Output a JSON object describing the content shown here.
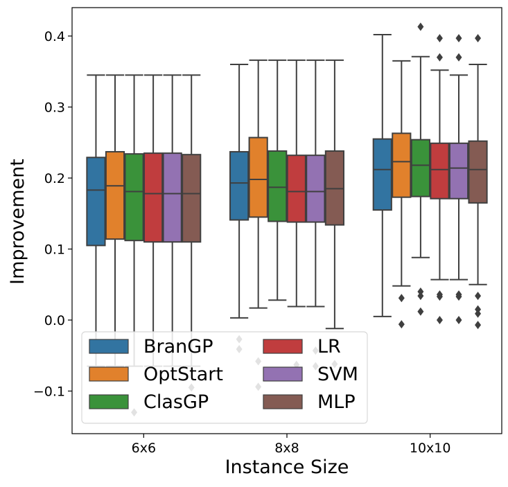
{
  "chart_data": {
    "type": "box",
    "xlabel": "Instance Size",
    "ylabel": "Improvement",
    "categories": [
      "6x6",
      "8x8",
      "10x10"
    ],
    "ylim": [
      -0.16,
      0.44
    ],
    "yticks": [
      -0.1,
      0.0,
      0.1,
      0.2,
      0.3,
      0.4
    ],
    "ytick_labels": [
      "−0.1",
      "0.0",
      "0.1",
      "0.2",
      "0.3",
      "0.4"
    ],
    "grid": false,
    "legend_placement": "lower-left",
    "legend_columns": 2,
    "series": [
      {
        "name": "BranGP",
        "color": "#3274a1",
        "boxes": [
          {
            "whisker_low": -0.065,
            "q1": 0.105,
            "median": 0.183,
            "q3": 0.229,
            "whisker_high": 0.345,
            "outliers": []
          },
          {
            "whisker_low": 0.003,
            "q1": 0.141,
            "median": 0.193,
            "q3": 0.237,
            "whisker_high": 0.36,
            "outliers": [
              -0.027,
              -0.041
            ]
          },
          {
            "whisker_low": 0.005,
            "q1": 0.155,
            "median": 0.212,
            "q3": 0.255,
            "whisker_high": 0.402,
            "outliers": []
          }
        ]
      },
      {
        "name": "OptStart",
        "color": "#e1812c",
        "boxes": [
          {
            "whisker_low": -0.065,
            "q1": 0.114,
            "median": 0.189,
            "q3": 0.237,
            "whisker_high": 0.345,
            "outliers": []
          },
          {
            "whisker_low": 0.017,
            "q1": 0.145,
            "median": 0.198,
            "q3": 0.257,
            "whisker_high": 0.366,
            "outliers": [
              -0.058,
              -0.094
            ]
          },
          {
            "whisker_low": 0.048,
            "q1": 0.173,
            "median": 0.223,
            "q3": 0.263,
            "whisker_high": 0.365,
            "outliers": [
              0.031,
              -0.006
            ]
          }
        ]
      },
      {
        "name": "ClasGP",
        "color": "#3a923a",
        "boxes": [
          {
            "whisker_low": -0.065,
            "q1": 0.112,
            "median": 0.181,
            "q3": 0.234,
            "whisker_high": 0.345,
            "outliers": [
              -0.13
            ]
          },
          {
            "whisker_low": 0.028,
            "q1": 0.139,
            "median": 0.187,
            "q3": 0.238,
            "whisker_high": 0.366,
            "outliers": []
          },
          {
            "whisker_low": 0.088,
            "q1": 0.174,
            "median": 0.218,
            "q3": 0.254,
            "whisker_high": 0.371,
            "outliers": [
              0.413,
              0.04,
              0.034,
              0.012
            ]
          }
        ]
      },
      {
        "name": "LR",
        "color": "#c03d3e",
        "boxes": [
          {
            "whisker_low": -0.065,
            "q1": 0.11,
            "median": 0.178,
            "q3": 0.235,
            "whisker_high": 0.345,
            "outliers": []
          },
          {
            "whisker_low": 0.019,
            "q1": 0.138,
            "median": 0.181,
            "q3": 0.232,
            "whisker_high": 0.366,
            "outliers": [
              -0.063
            ]
          },
          {
            "whisker_low": 0.057,
            "q1": 0.171,
            "median": 0.212,
            "q3": 0.249,
            "whisker_high": 0.352,
            "outliers": [
              0.397,
              0.37,
              0.036,
              0.033,
              0.0
            ]
          }
        ]
      },
      {
        "name": "SVM",
        "color": "#9372b2",
        "boxes": [
          {
            "whisker_low": -0.065,
            "q1": 0.11,
            "median": 0.178,
            "q3": 0.235,
            "whisker_high": 0.345,
            "outliers": []
          },
          {
            "whisker_low": 0.019,
            "q1": 0.138,
            "median": 0.181,
            "q3": 0.232,
            "whisker_high": 0.366,
            "outliers": [
              -0.043,
              -0.065
            ]
          },
          {
            "whisker_low": 0.057,
            "q1": 0.171,
            "median": 0.214,
            "q3": 0.249,
            "whisker_high": 0.345,
            "outliers": [
              0.397,
              0.37,
              0.036,
              0.033,
              0.0
            ]
          }
        ]
      },
      {
        "name": "MLP",
        "color": "#845b53",
        "boxes": [
          {
            "whisker_low": -0.065,
            "q1": 0.11,
            "median": 0.178,
            "q3": 0.233,
            "whisker_high": 0.345,
            "outliers": [
              -0.095
            ]
          },
          {
            "whisker_low": -0.012,
            "q1": 0.134,
            "median": 0.185,
            "q3": 0.238,
            "whisker_high": 0.366,
            "outliers": [
              -0.062
            ]
          },
          {
            "whisker_low": 0.05,
            "q1": 0.165,
            "median": 0.212,
            "q3": 0.252,
            "whisker_high": 0.36,
            "outliers": [
              0.397,
              0.034,
              0.015,
              0.009,
              -0.007
            ]
          }
        ]
      }
    ]
  }
}
